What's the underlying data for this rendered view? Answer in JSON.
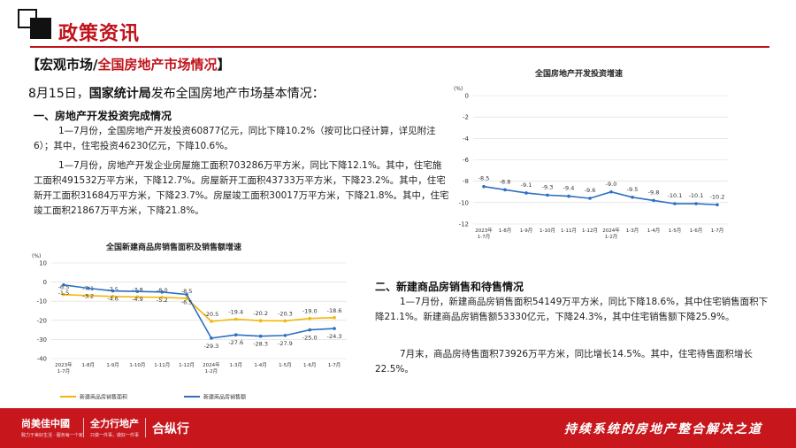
{
  "header": {
    "title": "政策资讯",
    "sub_black": "【宏观市场/",
    "sub_red": "全国房地产市场情况",
    "sub_close": "】"
  },
  "intro": {
    "date": "8月15日，",
    "org": "国家统计局",
    "rest": "发布全国房地产市场基本情况："
  },
  "section1": {
    "heading": "一、房地产开发投资完成情况",
    "p1": "1—7月份，全国房地产开发投资60877亿元，同比下降10.2%（按可比口径计算，详见附注6）；其中，住宅投资46230亿元，下降10.6%。",
    "p2": "1—7月份，房地产开发企业房屋施工面积703286万平方米，同比下降12.1%。其中，住宅施工面积491532万平方米，下降12.7%。房屋新开工面积43733万平方米，下降23.2%。其中，住宅新开工面积31684万平方米，下降23.7%。房屋竣工面积30017万平方米，下降21.8%。其中，住宅竣工面积21867万平方米，下降21.8%。"
  },
  "section2": {
    "heading": "二、新建商品房销售和待售情况",
    "p1": "1—7月份，新建商品房销售面积54149万平方米，同比下降18.6%，其中住宅销售面积下降21.1%。新建商品房销售额53330亿元，下降24.3%，其中住宅销售额下降25.9%。",
    "p2": "7月末，商品房待售面积73926万平方米，同比增长14.5%。其中，住宅待售面积增长22.5%。"
  },
  "chart_data": [
    {
      "type": "line",
      "title": "全国房地产开发投资增速",
      "ylabel": "(%)",
      "categories": [
        "2023年1-7月",
        "1-8月",
        "1-9月",
        "1-10月",
        "1-11月",
        "1-12月",
        "2024年1-2月",
        "1-3月",
        "1-4月",
        "1-5月",
        "1-6月",
        "1-7月"
      ],
      "series": [
        {
          "values": [
            -8.5,
            -8.8,
            -9.1,
            -9.3,
            -9.4,
            -9.6,
            -9.0,
            -9.5,
            -9.8,
            -10.1,
            -10.1,
            -10.2
          ],
          "labels": [
            "-8.5",
            "-8.8",
            "-9.1",
            "-9.3",
            "-9.4",
            "-9.6",
            "-9.0",
            "-9.5",
            "-9.8",
            "-10.1",
            "-10.1",
            "-10.2"
          ]
        }
      ],
      "ylim": [
        -12,
        0
      ],
      "yticks": [
        "0",
        "-2",
        "-4",
        "-6",
        "-8",
        "-10",
        "-12"
      ],
      "grid": true,
      "color": "#2d6fc0"
    },
    {
      "type": "line",
      "title": "全国新建商品房销售面积及销售额增速",
      "ylabel": "(%)",
      "categories": [
        "2023年1-7月",
        "1-8月",
        "1-9月",
        "1-10月",
        "1-11月",
        "1-12月",
        "2024年1-2月",
        "1-3月",
        "1-4月",
        "1-5月",
        "1-6月",
        "1-7月"
      ],
      "series": [
        {
          "name": "新建商品房销售面积",
          "color": "#f2b705",
          "values": [
            -6.5,
            -7.1,
            -7.5,
            -7.8,
            -8.0,
            -8.5,
            -20.5,
            -19.4,
            -20.2,
            -20.3,
            -19.0,
            -18.6
          ],
          "labels": [
            "-6.5",
            "-7.1",
            "-7.5",
            "-7.8",
            "-8.0",
            "-8.5",
            "-20.5",
            "-19.4",
            "-20.2",
            "-20.3",
            "-19.0",
            "-18.6"
          ]
        },
        {
          "name": "新建商品房销售额",
          "color": "#2d6fc0",
          "values": [
            -1.5,
            -3.2,
            -4.6,
            -4.9,
            -5.2,
            -6.5,
            -29.3,
            -27.6,
            -28.3,
            -27.9,
            -25.0,
            -24.3
          ],
          "labels": [
            "-1.5",
            "-3.2",
            "-4.6",
            "-4.9",
            "-5.2",
            "-6.5",
            "-29.3",
            "-27.6",
            "-28.3",
            "-27.9",
            "-25.0",
            "-24.3"
          ]
        }
      ],
      "ylim": [
        -40,
        10
      ],
      "yticks": [
        "10",
        "0",
        "-10",
        "-20",
        "-30",
        "-40"
      ],
      "grid": true,
      "legend": "bottom"
    }
  ],
  "footer": {
    "brand1": "尚美佳中國",
    "brand1_sub": "致力于美好生活 · 服务每一个家",
    "brand2": "全力行地产",
    "brand2_sub": "只做一件事，做好一件事",
    "brand3": "合纵行",
    "slogan": "持续系统的房地产整合解决之道",
    "color": "#c8161d"
  },
  "colors": {
    "accent": "#c0141c"
  }
}
